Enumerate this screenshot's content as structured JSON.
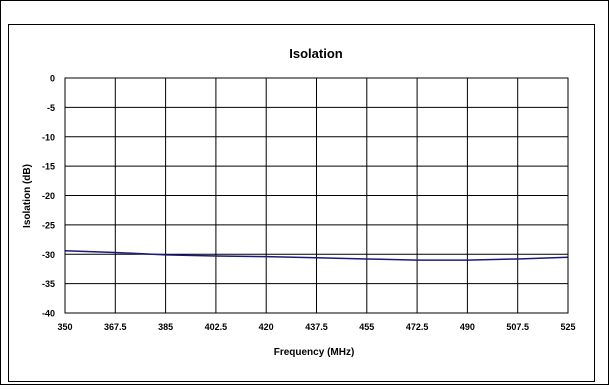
{
  "chart_data": {
    "type": "line",
    "title": "Isolation",
    "xlabel": "Frequency (MHz)",
    "ylabel": "Isolation (dB)",
    "xlim": [
      350,
      525
    ],
    "ylim": [
      -40,
      0
    ],
    "x_ticks": [
      350,
      367.5,
      385,
      402.5,
      420,
      437.5,
      455,
      472.5,
      490,
      507.5,
      525
    ],
    "x_tick_labels": [
      "350",
      "367.5",
      "385",
      "402.5",
      "420",
      "437.5",
      "455",
      "472.5",
      "490",
      "507.5",
      "525"
    ],
    "y_ticks": [
      0,
      -5,
      -10,
      -15,
      -20,
      -25,
      -30,
      -35,
      -40
    ],
    "y_tick_labels": [
      "0",
      "-5",
      "-10",
      "-15",
      "-20",
      "-25",
      "-30",
      "-35",
      "-40"
    ],
    "grid": true,
    "legend": "none",
    "series": [
      {
        "color": "#1a1a7a",
        "x": [
          350,
          367.5,
          385,
          402.5,
          420,
          437.5,
          455,
          472.5,
          490,
          507.5,
          525
        ],
        "y": [
          -29.4,
          -29.7,
          -30.1,
          -30.3,
          -30.4,
          -30.6,
          -30.8,
          -31.0,
          -31.0,
          -30.8,
          -30.5
        ]
      }
    ]
  }
}
